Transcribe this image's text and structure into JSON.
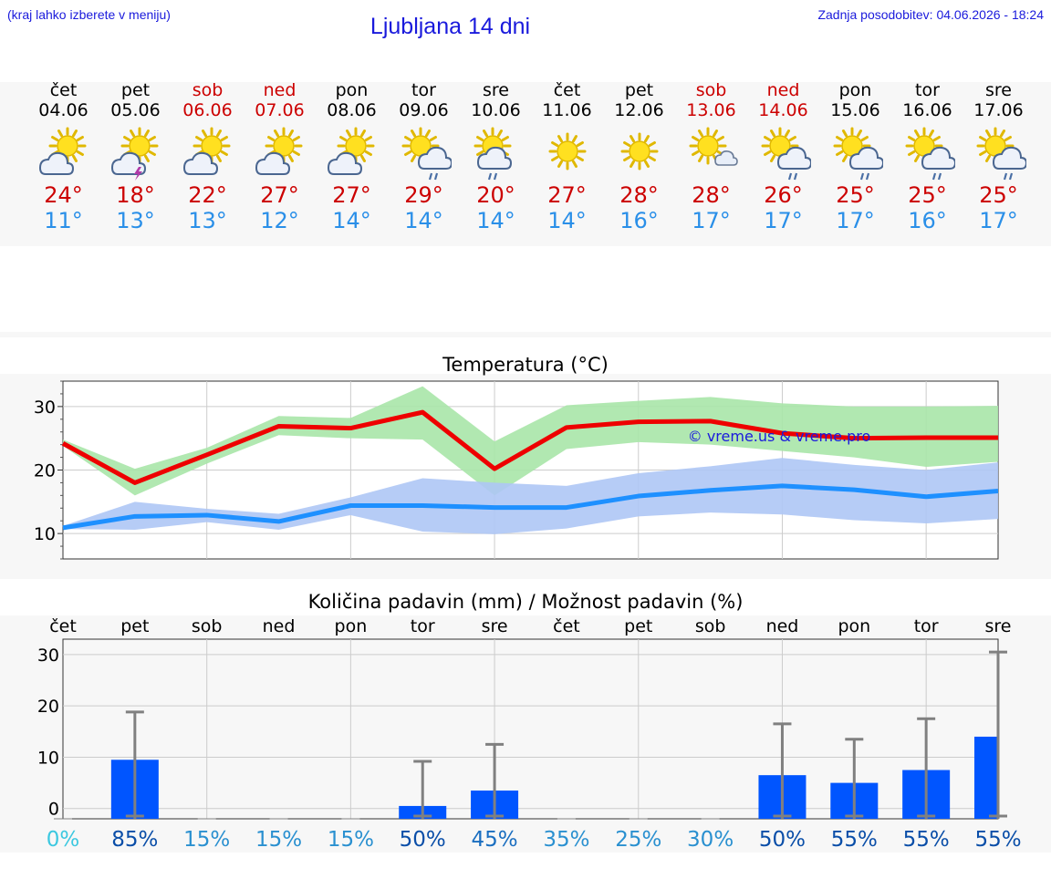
{
  "header": {
    "note": "(kraj lahko izberete v meniju)",
    "title": "Ljubljana 14 dni",
    "updated": "Zadnja posodobitev: 04.06.2026 - 18:24"
  },
  "days": [
    {
      "name": "čet",
      "date": "04.06",
      "weekend": false,
      "icon": "sun-cloud-icon",
      "tmax": "24°",
      "tmin": "11°"
    },
    {
      "name": "pet",
      "date": "05.06",
      "weekend": false,
      "icon": "sun-cloud-lightning-icon",
      "tmax": "18°",
      "tmin": "13°"
    },
    {
      "name": "sob",
      "date": "06.06",
      "weekend": true,
      "icon": "sun-cloud-icon",
      "tmax": "22°",
      "tmin": "13°"
    },
    {
      "name": "ned",
      "date": "07.06",
      "weekend": true,
      "icon": "sun-cloud-icon",
      "tmax": "27°",
      "tmin": "12°"
    },
    {
      "name": "pon",
      "date": "08.06",
      "weekend": false,
      "icon": "sun-cloud-icon",
      "tmax": "27°",
      "tmin": "14°"
    },
    {
      "name": "tor",
      "date": "09.06",
      "weekend": false,
      "icon": "sun-rain-icon",
      "tmax": "29°",
      "tmin": "14°"
    },
    {
      "name": "sre",
      "date": "10.06",
      "weekend": false,
      "icon": "sun-cloud-rain-icon",
      "tmax": "20°",
      "tmin": "14°"
    },
    {
      "name": "čet",
      "date": "11.06",
      "weekend": false,
      "icon": "sun-icon",
      "tmax": "27°",
      "tmin": "14°"
    },
    {
      "name": "pet",
      "date": "12.06",
      "weekend": false,
      "icon": "sun-icon",
      "tmax": "28°",
      "tmin": "16°"
    },
    {
      "name": "sob",
      "date": "13.06",
      "weekend": true,
      "icon": "sun-small-cloud-icon",
      "tmax": "28°",
      "tmin": "17°"
    },
    {
      "name": "ned",
      "date": "14.06",
      "weekend": true,
      "icon": "sun-rain-icon",
      "tmax": "26°",
      "tmin": "17°"
    },
    {
      "name": "pon",
      "date": "15.06",
      "weekend": false,
      "icon": "sun-rain-icon",
      "tmax": "25°",
      "tmin": "17°"
    },
    {
      "name": "tor",
      "date": "16.06",
      "weekend": false,
      "icon": "sun-rain-icon",
      "tmax": "25°",
      "tmin": "16°"
    },
    {
      "name": "sre",
      "date": "17.06",
      "weekend": false,
      "icon": "sun-rain-icon",
      "tmax": "25°",
      "tmin": "17°"
    }
  ],
  "colors": {
    "max_line": "#ee0000",
    "max_band": "#a8e6a8",
    "min_line": "#1e90ff",
    "min_band": "#aec6f5",
    "bar": "#0055ff",
    "weekend": "#cc0000",
    "link": "#1a1adc"
  },
  "chart_data": [
    {
      "type": "line",
      "title": "Temperatura (°C)",
      "watermark": "© vreme.us & vreme.pro",
      "yticks": [
        10,
        20,
        30
      ],
      "ylim": [
        6,
        34
      ],
      "x_count": 14,
      "series": [
        {
          "name": "",
          "values": [
            24.2,
            18,
            22.4,
            26.9,
            26.6,
            29.1,
            20.2,
            26.7,
            27.6,
            27.7,
            25.8,
            25,
            25.1,
            25.1
          ],
          "band_low": [
            23.8,
            16,
            21,
            25.5,
            25,
            24.8,
            16,
            23.3,
            24.4,
            24,
            23,
            22,
            20.5,
            21.3
          ],
          "band_high": [
            24.8,
            20.2,
            23.5,
            28.5,
            28.2,
            33.2,
            24.5,
            30.2,
            30.9,
            31.5,
            30.5,
            30,
            30,
            30.1
          ]
        },
        {
          "name": "",
          "values": [
            10.9,
            12.7,
            12.9,
            11.9,
            14.4,
            14.4,
            14.1,
            14.1,
            15.9,
            16.8,
            17.5,
            16.9,
            15.8,
            16.7
          ],
          "band_low": [
            10.7,
            10.6,
            11.8,
            10.6,
            12.9,
            10.3,
            9.9,
            10.8,
            12.7,
            13.3,
            13,
            12.1,
            11.6,
            12.3
          ],
          "band_high": [
            11.2,
            15,
            13.9,
            13.1,
            15.7,
            18.7,
            18,
            17.5,
            19.5,
            20.6,
            21.9,
            20.8,
            20,
            21.2
          ]
        }
      ]
    },
    {
      "type": "bar",
      "title": "Količina padavin (mm) / Možnost padavin (%)",
      "categories": [
        "čet",
        "pet",
        "sob",
        "ned",
        "pon",
        "tor",
        "sre",
        "čet",
        "pet",
        "sob",
        "ned",
        "pon",
        "tor",
        "sre"
      ],
      "yticks": [
        0,
        10,
        20,
        30
      ],
      "ylim": [
        -2,
        33
      ],
      "values": [
        0,
        9.5,
        0,
        0,
        0,
        0.5,
        3.5,
        0,
        0,
        0,
        6.5,
        5,
        7.5,
        14
      ],
      "error_high": [
        0,
        18.8,
        0,
        0,
        0,
        9.2,
        12.5,
        0,
        0,
        0,
        16.5,
        13.5,
        17.5,
        30.5
      ],
      "probability": [
        "0%",
        "85%",
        "15%",
        "15%",
        "15%",
        "50%",
        "45%",
        "35%",
        "25%",
        "30%",
        "50%",
        "55%",
        "55%",
        "55%"
      ],
      "probability_values": [
        0,
        85,
        15,
        15,
        15,
        50,
        45,
        35,
        25,
        30,
        50,
        55,
        55,
        55
      ]
    }
  ]
}
